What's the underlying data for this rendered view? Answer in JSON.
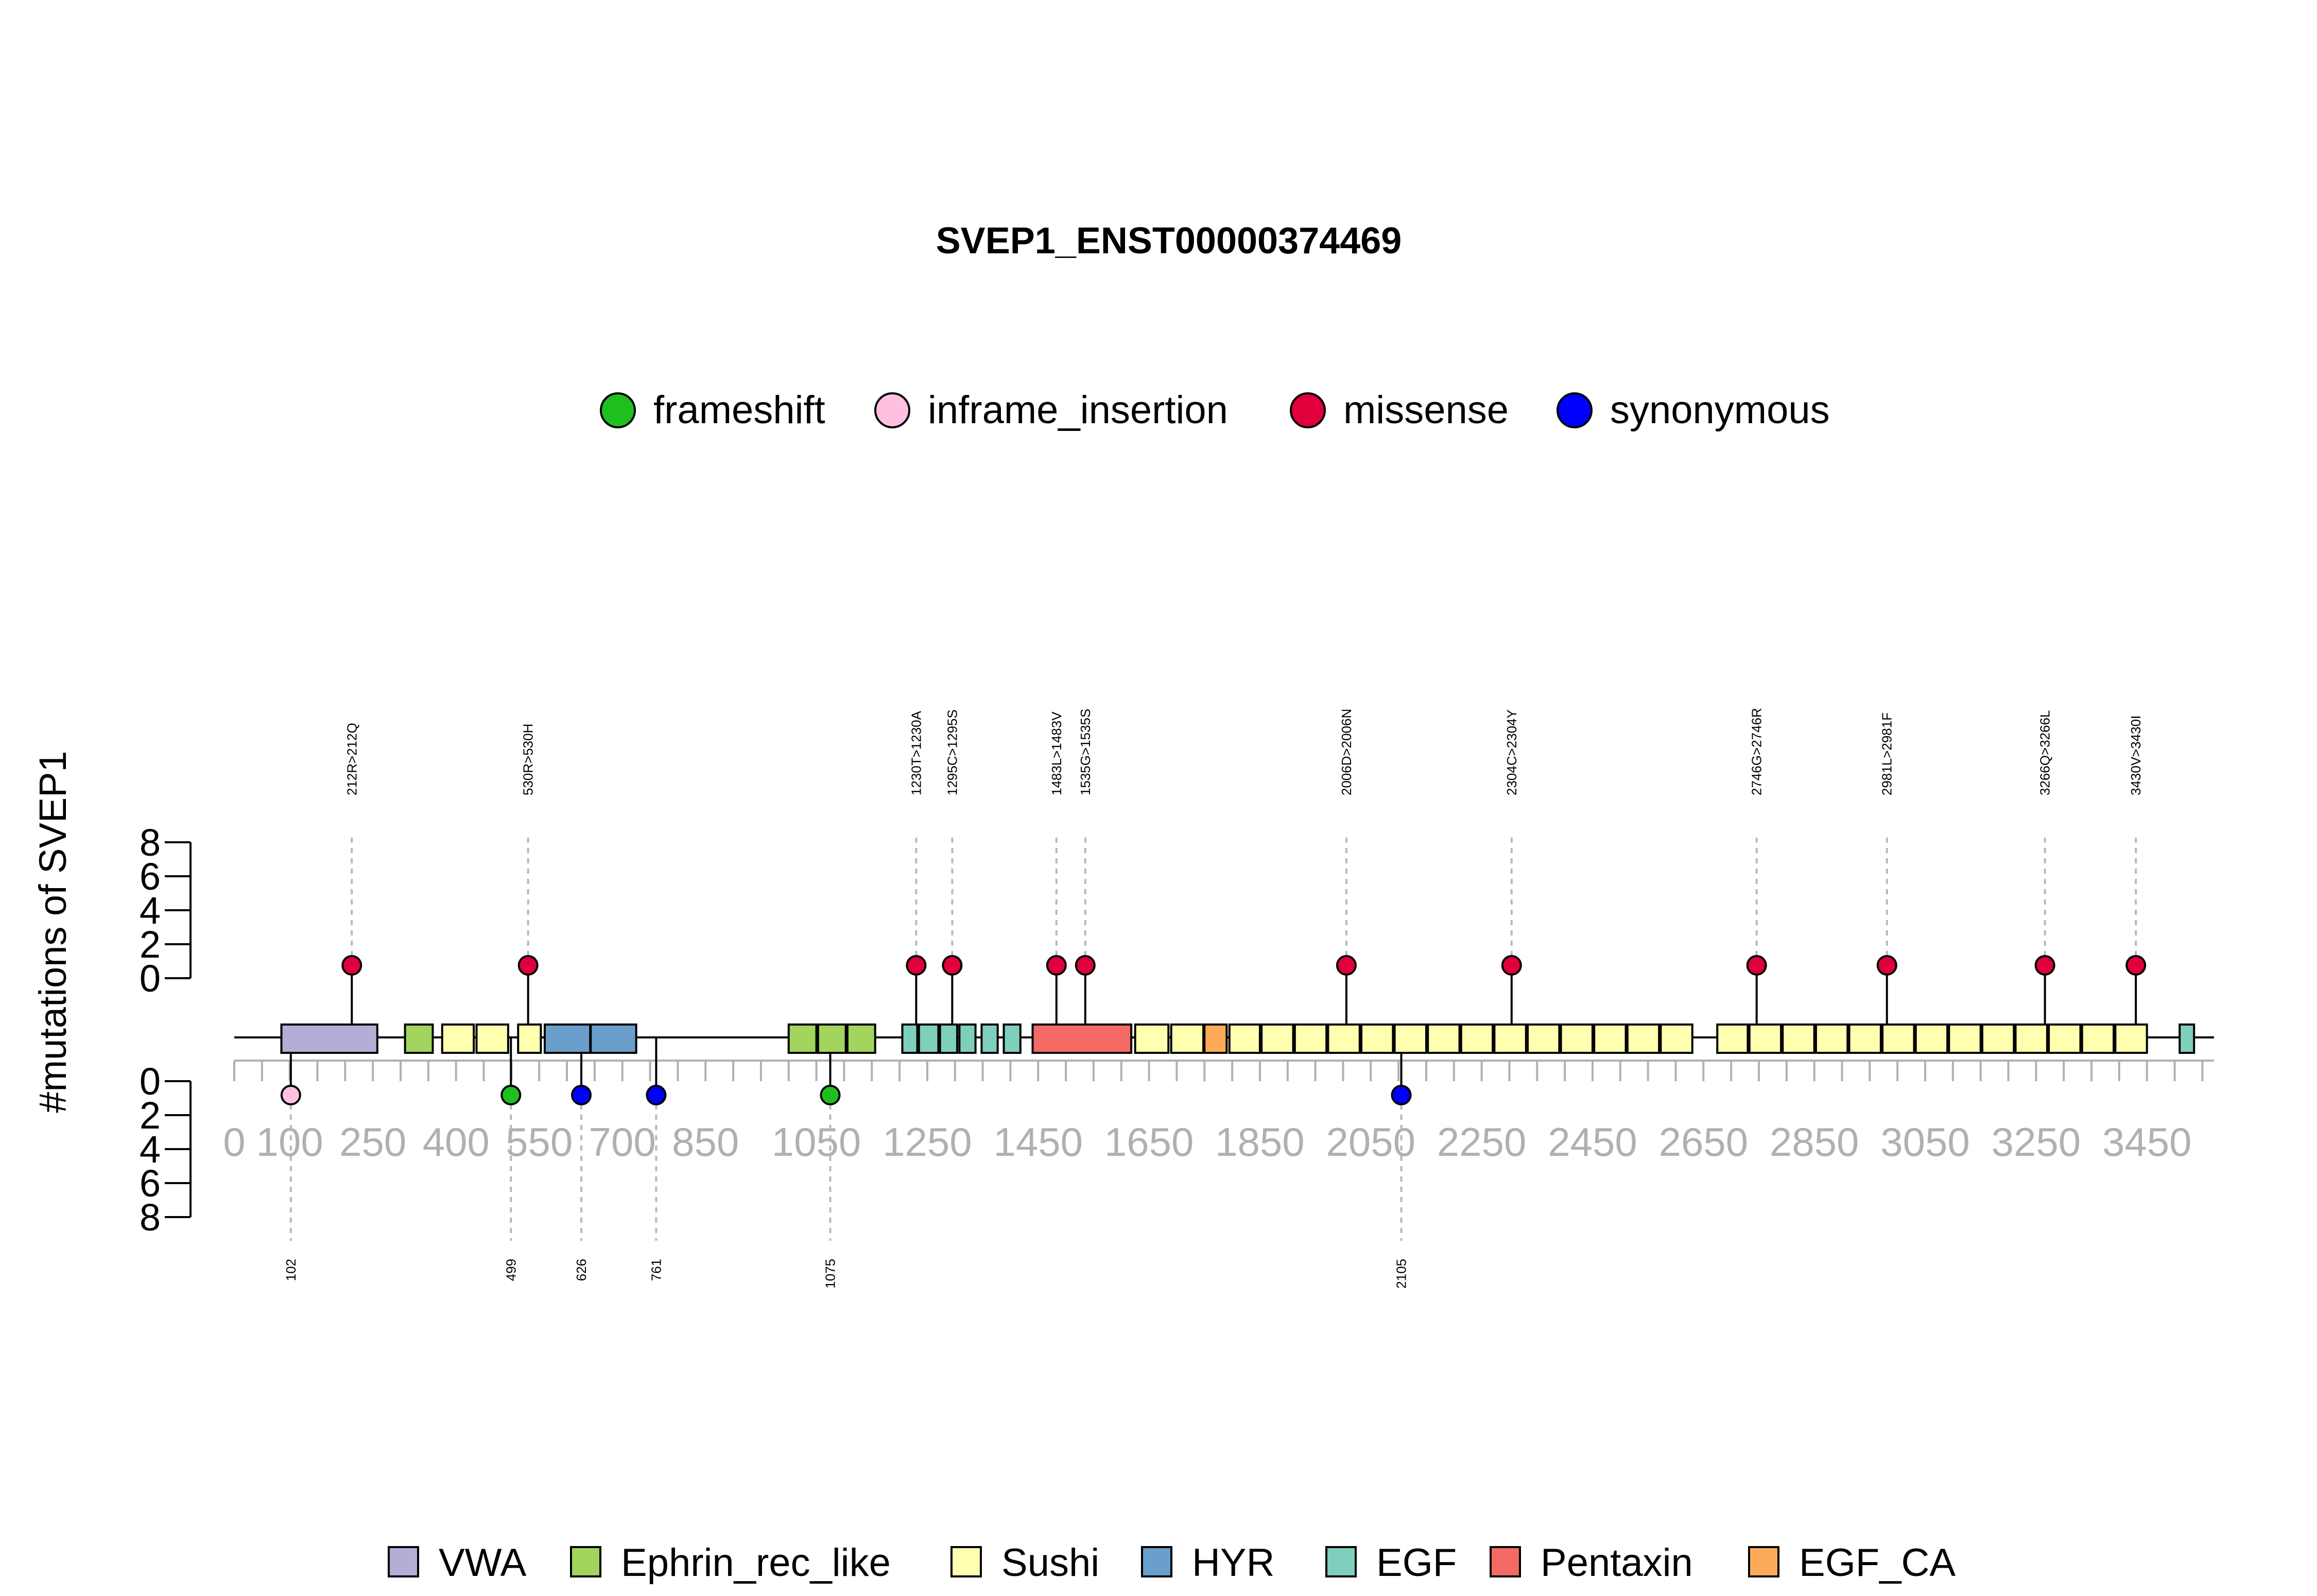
{
  "chart_data": {
    "type": "lollipop",
    "title": "SVEP1_ENST00000374469",
    "ylabel": "#mutations of SVEP1",
    "protein_length": 3571,
    "x_ticks": [
      0,
      100,
      250,
      400,
      550,
      700,
      850,
      1050,
      1250,
      1450,
      1650,
      1850,
      2050,
      2250,
      2450,
      2650,
      2850,
      3050,
      3250,
      3450
    ],
    "x_tick_labels": [
      "0",
      "100",
      "250",
      "400",
      "550",
      "700",
      "850",
      "1050",
      "1250",
      "1450",
      "1650",
      "1850",
      "2050",
      "2250",
      "2450",
      "2650",
      "2850",
      "3050",
      "3250",
      "3450"
    ],
    "y_ticks": [
      0,
      2,
      4,
      6,
      8
    ],
    "y_tick_labels": [
      "0",
      "2",
      "4",
      "6",
      "8"
    ],
    "ylim": [
      0,
      8
    ],
    "mutation_legend": [
      {
        "name": "frameshift",
        "color": "#1fbf1f"
      },
      {
        "name": "inframe_insertion",
        "color": "#ffc0e0"
      },
      {
        "name": "missense",
        "color": "#e0003c"
      },
      {
        "name": "synonymous",
        "color": "#0000ff"
      }
    ],
    "domain_legend": [
      {
        "name": "VWA",
        "color": "#b3aed6"
      },
      {
        "name": "Ephrin_rec_like",
        "color": "#a2d45e"
      },
      {
        "name": "Sushi",
        "color": "#ffffb0"
      },
      {
        "name": "HYR",
        "color": "#6a9fcc"
      },
      {
        "name": "EGF",
        "color": "#7fcfbd"
      },
      {
        "name": "Pentaxin",
        "color": "#f46a64"
      },
      {
        "name": "EGF_CA",
        "color": "#fdab5b"
      }
    ],
    "top_mutations": [
      {
        "position": 212,
        "label": "212R>212Q",
        "count": 1,
        "type": "missense"
      },
      {
        "position": 530,
        "label": "530R>530H",
        "count": 1,
        "type": "missense"
      },
      {
        "position": 1230,
        "label": "1230T>1230A",
        "count": 1,
        "type": "missense"
      },
      {
        "position": 1295,
        "label": "1295C>1295S",
        "count": 1,
        "type": "missense"
      },
      {
        "position": 1483,
        "label": "1483L>1483V",
        "count": 1,
        "type": "missense"
      },
      {
        "position": 1535,
        "label": "1535G>1535S",
        "count": 1,
        "type": "missense"
      },
      {
        "position": 2006,
        "label": "2006D>2006N",
        "count": 1,
        "type": "missense"
      },
      {
        "position": 2304,
        "label": "2304C>2304Y",
        "count": 1,
        "type": "missense"
      },
      {
        "position": 2746,
        "label": "2746G>2746R",
        "count": 1,
        "type": "missense"
      },
      {
        "position": 2981,
        "label": "2981L>2981F",
        "count": 1,
        "type": "missense"
      },
      {
        "position": 3266,
        "label": "3266Q>3266L",
        "count": 1,
        "type": "missense"
      },
      {
        "position": 3430,
        "label": "3430V>3430I",
        "count": 1,
        "type": "missense"
      }
    ],
    "bottom_mutations": [
      {
        "position": 102,
        "label": "102",
        "count": 1,
        "type": "inframe_insertion"
      },
      {
        "position": 499,
        "label": "499",
        "count": 1,
        "type": "frameshift"
      },
      {
        "position": 626,
        "label": "626",
        "count": 1,
        "type": "synonymous"
      },
      {
        "position": 761,
        "label": "761",
        "count": 1,
        "type": "synonymous"
      },
      {
        "position": 1075,
        "label": "1075",
        "count": 1,
        "type": "frameshift"
      },
      {
        "position": 2105,
        "label": "2105",
        "count": 1,
        "type": "synonymous"
      }
    ],
    "domains": [
      {
        "name": "VWA",
        "start": 85,
        "end": 258
      },
      {
        "name": "Ephrin_rec_like",
        "start": 308,
        "end": 358
      },
      {
        "name": "Sushi",
        "start": 375,
        "end": 432
      },
      {
        "name": "Sushi",
        "start": 437,
        "end": 494
      },
      {
        "name": "Sushi",
        "start": 512,
        "end": 553
      },
      {
        "name": "HYR",
        "start": 560,
        "end": 642
      },
      {
        "name": "HYR",
        "start": 643,
        "end": 725
      },
      {
        "name": "Ephrin_rec_like",
        "start": 1000,
        "end": 1050
      },
      {
        "name": "Ephrin_rec_like",
        "start": 1053,
        "end": 1103
      },
      {
        "name": "Ephrin_rec_like",
        "start": 1106,
        "end": 1156
      },
      {
        "name": "EGF",
        "start": 1205,
        "end": 1232
      },
      {
        "name": "EGF",
        "start": 1235,
        "end": 1270
      },
      {
        "name": "EGF",
        "start": 1273,
        "end": 1304
      },
      {
        "name": "EGF",
        "start": 1308,
        "end": 1337
      },
      {
        "name": "EGF",
        "start": 1348,
        "end": 1377
      },
      {
        "name": "EGF",
        "start": 1388,
        "end": 1418
      },
      {
        "name": "Pentaxin",
        "start": 1440,
        "end": 1618
      },
      {
        "name": "Sushi",
        "start": 1625,
        "end": 1685
      },
      {
        "name": "Sushi",
        "start": 1690,
        "end": 1748
      },
      {
        "name": "EGF_CA",
        "start": 1750,
        "end": 1790
      },
      {
        "name": "Sushi",
        "start": 1795,
        "end": 1850
      },
      {
        "name": "Sushi",
        "start": 1853,
        "end": 1910
      },
      {
        "name": "Sushi",
        "start": 1913,
        "end": 1970
      },
      {
        "name": "Sushi",
        "start": 1973,
        "end": 2030
      },
      {
        "name": "Sushi",
        "start": 2033,
        "end": 2090
      },
      {
        "name": "Sushi",
        "start": 2093,
        "end": 2150
      },
      {
        "name": "Sushi",
        "start": 2153,
        "end": 2210
      },
      {
        "name": "Sushi",
        "start": 2213,
        "end": 2270
      },
      {
        "name": "Sushi",
        "start": 2273,
        "end": 2330
      },
      {
        "name": "Sushi",
        "start": 2333,
        "end": 2390
      },
      {
        "name": "Sushi",
        "start": 2393,
        "end": 2450
      },
      {
        "name": "Sushi",
        "start": 2453,
        "end": 2510
      },
      {
        "name": "Sushi",
        "start": 2513,
        "end": 2570
      },
      {
        "name": "Sushi",
        "start": 2573,
        "end": 2630
      },
      {
        "name": "Sushi",
        "start": 2675,
        "end": 2730
      },
      {
        "name": "Sushi",
        "start": 2733,
        "end": 2790
      },
      {
        "name": "Sushi",
        "start": 2793,
        "end": 2850
      },
      {
        "name": "Sushi",
        "start": 2853,
        "end": 2910
      },
      {
        "name": "Sushi",
        "start": 2913,
        "end": 2970
      },
      {
        "name": "Sushi",
        "start": 2973,
        "end": 3030
      },
      {
        "name": "Sushi",
        "start": 3033,
        "end": 3090
      },
      {
        "name": "Sushi",
        "start": 3093,
        "end": 3150
      },
      {
        "name": "Sushi",
        "start": 3153,
        "end": 3210
      },
      {
        "name": "Sushi",
        "start": 3213,
        "end": 3270
      },
      {
        "name": "Sushi",
        "start": 3273,
        "end": 3330
      },
      {
        "name": "Sushi",
        "start": 3333,
        "end": 3390
      },
      {
        "name": "Sushi",
        "start": 3393,
        "end": 3450
      },
      {
        "name": "EGF",
        "start": 3509,
        "end": 3535
      }
    ]
  }
}
